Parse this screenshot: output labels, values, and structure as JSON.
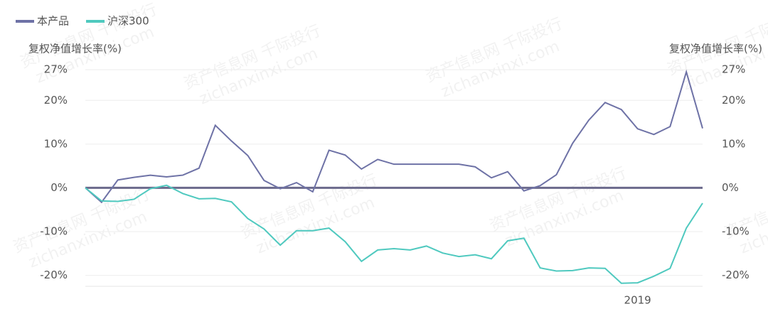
{
  "chart_data": {
    "type": "line",
    "y_label": "复权净值增长率(%)",
    "y2_label": "复权净值增长率(%)",
    "watermark": [
      "资产信息网 千际投行",
      "zichanxinxi.com"
    ],
    "categories": [
      null,
      null,
      null,
      null,
      null,
      null,
      null,
      null,
      null,
      null,
      null,
      null,
      null,
      null,
      null,
      null,
      null,
      null,
      null,
      null,
      null,
      null,
      null,
      null,
      null,
      null,
      null,
      null,
      null,
      null,
      null,
      null,
      null,
      null,
      "2019",
      null,
      null,
      null,
      null
    ],
    "series": [
      {
        "name": "本产品",
        "color": "#6e72a6",
        "values": [
          0,
          -3.3,
          1.8,
          2.4,
          2.9,
          2.5,
          2.9,
          4.5,
          14.3,
          10.7,
          7.4,
          1.7,
          -0.2,
          1.2,
          -0.9,
          8.6,
          7.5,
          4.3,
          6.5,
          5.4,
          5.4,
          5.4,
          5.4,
          5.4,
          4.8,
          2.3,
          3.7,
          -0.7,
          0.5,
          3.0,
          10.2,
          15.5,
          19.5,
          17.9,
          13.5,
          12.2,
          14.0,
          26.5,
          13.6
        ]
      },
      {
        "name": "沪深300",
        "color": "#4fc9bf",
        "values": [
          0,
          -3.0,
          -3.1,
          -2.6,
          -0.2,
          0.6,
          -1.3,
          -2.5,
          -2.4,
          -3.2,
          -7.0,
          -9.4,
          -13.1,
          -9.8,
          -9.8,
          -9.2,
          -12.3,
          -16.8,
          -14.2,
          -13.9,
          -14.2,
          -13.3,
          -14.9,
          -15.7,
          -15.3,
          -16.2,
          -12.1,
          -11.5,
          -18.3,
          -19.0,
          -18.9,
          -18.3,
          -18.4,
          -21.8,
          -21.7,
          -20.2,
          -18.4,
          -9.2,
          -3.5
        ]
      }
    ],
    "ylim": [
      -22.5,
      28
    ],
    "yticks": [
      {
        "value": -20,
        "label": "-20%"
      },
      {
        "value": -10,
        "label": "-10%"
      },
      {
        "value": 0,
        "label": "0%"
      },
      {
        "value": 10,
        "label": "10%"
      },
      {
        "value": 20,
        "label": "20%"
      },
      {
        "value": 27,
        "label": "27%"
      }
    ],
    "y2lim": [
      -22.5,
      28
    ],
    "y2ticks": [
      {
        "value": -20,
        "label": "-20%"
      },
      {
        "value": -10,
        "label": "-10%"
      },
      {
        "value": 0,
        "label": "0%"
      },
      {
        "value": 10,
        "label": "10%"
      },
      {
        "value": 20,
        "label": "20%"
      },
      {
        "value": 27,
        "label": "27%"
      }
    ],
    "grid": true,
    "legend": "top-left"
  }
}
